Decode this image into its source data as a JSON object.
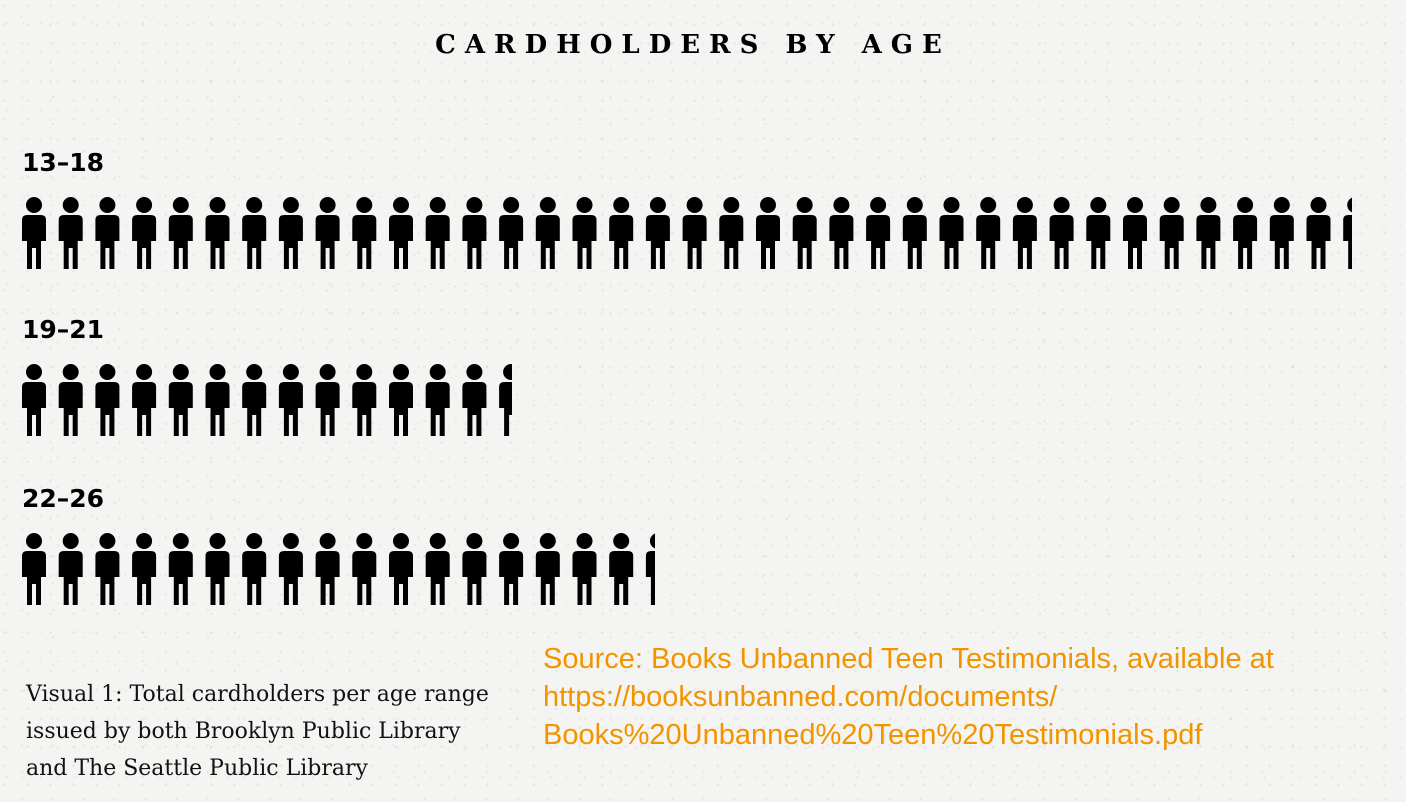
{
  "chart_data": {
    "type": "pictogram",
    "title": "CARDHOLDERS BY AGE",
    "unit_icon": "person-icon",
    "categories": [
      "13–18",
      "19–21",
      "22–26"
    ],
    "values": [
      36.3,
      13.4,
      17.3
    ]
  },
  "caption": {
    "line1": "Visual 1: Total cardholders per age range",
    "line2": "issued by both Brooklyn Public Library",
    "line3": "and The Seattle Public Library"
  },
  "source": {
    "line1": "Source: Books Unbanned Teen Testimonials, available at",
    "line2": "https://booksunbanned.com/documents/",
    "line3": "Books%20Unbanned%20Teen%20Testimonials.pdf"
  },
  "colors": {
    "icon": "#000000",
    "source_text": "#f29400",
    "background": "#f4f4f2"
  }
}
